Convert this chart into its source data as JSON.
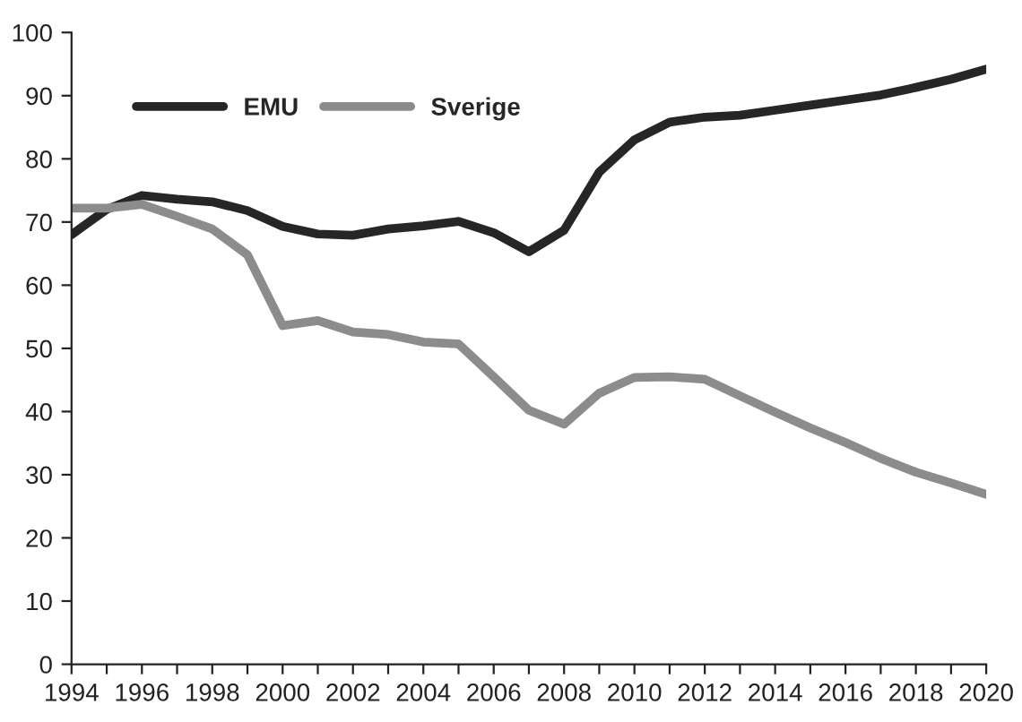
{
  "chart_data": {
    "type": "line",
    "x": [
      1994,
      1995,
      1996,
      1997,
      1998,
      1999,
      2000,
      2001,
      2002,
      2003,
      2004,
      2005,
      2006,
      2007,
      2008,
      2009,
      2010,
      2011,
      2012,
      2013,
      2014,
      2015,
      2016,
      2017,
      2018,
      2019,
      2020
    ],
    "series": [
      {
        "name": "EMU",
        "color": "#262626",
        "values": [
          68,
          72,
          74.2,
          73.6,
          73.2,
          71.8,
          69.3,
          68.1,
          67.9,
          68.9,
          69.4,
          70.1,
          68.3,
          65.3,
          68.7,
          77.9,
          83,
          85.8,
          86.6,
          86.9,
          87.7,
          88.5,
          89.3,
          90.1,
          91.3,
          92.6,
          94.2
        ]
      },
      {
        "name": "Sverige",
        "color": "#8c8c8c",
        "values": [
          72.2,
          72.2,
          72.8,
          70.9,
          68.9,
          64.8,
          53.6,
          54.4,
          52.6,
          52.2,
          51,
          50.7,
          45.5,
          40.2,
          38,
          42.9,
          45.4,
          45.5,
          45.1,
          42.5,
          39.9,
          37.4,
          35.1,
          32.6,
          30.4,
          28.7,
          26.9
        ]
      }
    ],
    "xlim": [
      1994,
      2020
    ],
    "xticks": [
      1994,
      {
        "value": 1995,
        "label": null
      },
      1996,
      {
        "value": 1997,
        "label": null
      },
      1998,
      {
        "value": 1999,
        "label": null
      },
      2000,
      {
        "value": 2001,
        "label": null
      },
      2002,
      {
        "value": 2003,
        "label": null
      },
      2004,
      {
        "value": 2005,
        "label": null
      },
      2006,
      {
        "value": 2007,
        "label": null
      },
      2008,
      {
        "value": 2009,
        "label": null
      },
      2010,
      {
        "value": 2011,
        "label": null
      },
      2012,
      {
        "value": 2013,
        "label": null
      },
      2014,
      {
        "value": 2015,
        "label": null
      },
      2016,
      {
        "value": 2017,
        "label": null
      },
      2018,
      {
        "value": 2019,
        "label": null
      },
      2020
    ],
    "ylim": [
      0,
      100
    ],
    "yticks": [
      0,
      10,
      20,
      30,
      40,
      50,
      60,
      70,
      80,
      90,
      100
    ],
    "grid": false,
    "legend": "top left",
    "marker": "none",
    "line_style": "solid"
  }
}
